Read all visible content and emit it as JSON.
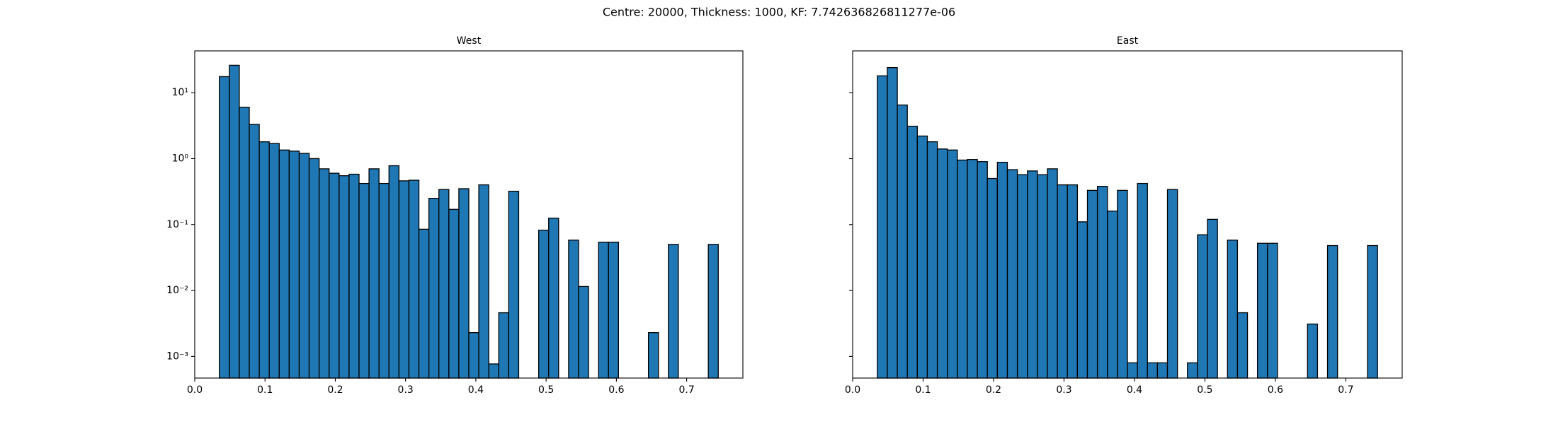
{
  "title": "Centre: 20000, Thickness: 1000, KF: 7.742636826811277e-06",
  "chart_data": [
    {
      "type": "histogram",
      "title": "West",
      "color": "#1f77b4",
      "edgecolor": "#000000",
      "log_y": true,
      "bins": [
        0.035,
        0.0492,
        0.0634,
        0.0776,
        0.0918,
        0.106,
        0.1202,
        0.1344,
        0.1486,
        0.1628,
        0.177,
        0.1912,
        0.2054,
        0.2196,
        0.2338,
        0.248,
        0.2622,
        0.2764,
        0.2906,
        0.3048,
        0.319,
        0.3332,
        0.3474,
        0.3616,
        0.3758,
        0.39,
        0.4042,
        0.4184,
        0.4326,
        0.4468,
        0.461,
        0.4752,
        0.4894,
        0.5036,
        0.5178,
        0.532,
        0.5462,
        0.5604,
        0.5746,
        0.5888,
        0.603,
        0.6172,
        0.6314,
        0.6456,
        0.6598,
        0.674,
        0.6882,
        0.7024,
        0.7166,
        0.7308,
        0.745
      ],
      "values": [
        17.5,
        26,
        6,
        3.3,
        1.8,
        1.7,
        1.35,
        1.3,
        1.2,
        1.0,
        0.7,
        0.6,
        0.55,
        0.58,
        0.42,
        0.7,
        0.42,
        0.78,
        0.46,
        0.47,
        0.085,
        0.25,
        0.34,
        0.17,
        0.35,
        0.0023,
        0.4,
        0.00077,
        0.0046,
        0.32,
        0,
        0,
        0.082,
        0.125,
        0,
        0.058,
        0.0115,
        0,
        0.054,
        0.054,
        0,
        0,
        0,
        0.0023,
        0,
        0.05,
        0,
        0,
        0,
        0.05
      ],
      "xlim": [
        0,
        0.78
      ],
      "xticks": [
        {
          "value": 0,
          "label": "0.0"
        },
        0.1,
        0.2,
        0.3,
        0.4,
        0.5,
        0.6,
        0.7
      ],
      "ylim": [
        0.00047,
        43
      ],
      "yticks": [
        {
          "value": 0.001,
          "label": "10⁻³"
        },
        {
          "value": 0.01,
          "label": "10⁻²"
        },
        {
          "value": 0.1,
          "label": "10⁻¹"
        },
        {
          "value": 1,
          "label": "10⁰"
        },
        {
          "value": 10,
          "label": "10¹"
        }
      ]
    },
    {
      "type": "histogram",
      "title": "East",
      "color": "#1f77b4",
      "edgecolor": "#000000",
      "log_y": true,
      "bins": [
        0.035,
        0.0492,
        0.0634,
        0.0776,
        0.0918,
        0.106,
        0.1202,
        0.1344,
        0.1486,
        0.1628,
        0.177,
        0.1912,
        0.2054,
        0.2196,
        0.2338,
        0.248,
        0.2622,
        0.2764,
        0.2906,
        0.3048,
        0.319,
        0.3332,
        0.3474,
        0.3616,
        0.3758,
        0.39,
        0.4042,
        0.4184,
        0.4326,
        0.4468,
        0.461,
        0.4752,
        0.4894,
        0.5036,
        0.5178,
        0.532,
        0.5462,
        0.5604,
        0.5746,
        0.5888,
        0.603,
        0.6172,
        0.6314,
        0.6456,
        0.6598,
        0.674,
        0.6882,
        0.7024,
        0.7166,
        0.7308,
        0.745
      ],
      "values": [
        18,
        24,
        6.5,
        3.1,
        2.2,
        1.8,
        1.4,
        1.35,
        0.95,
        0.97,
        0.9,
        0.5,
        0.88,
        0.68,
        0.57,
        0.65,
        0.57,
        0.7,
        0.4,
        0.4,
        0.11,
        0.33,
        0.38,
        0.16,
        0.33,
        0.0008,
        0.42,
        0.0008,
        0.0008,
        0.34,
        0,
        0.0008,
        0.07,
        0.12,
        0,
        0.058,
        0.0046,
        0,
        0.052,
        0.052,
        0,
        0,
        0,
        0.0031,
        0,
        0.048,
        0,
        0,
        0,
        0.048
      ],
      "xlim": [
        0,
        0.78
      ],
      "xticks": [
        {
          "value": 0,
          "label": "0.0"
        },
        0.1,
        0.2,
        0.3,
        0.4,
        0.5,
        0.6,
        0.7
      ],
      "ylim": [
        0.00047,
        43
      ]
    }
  ]
}
